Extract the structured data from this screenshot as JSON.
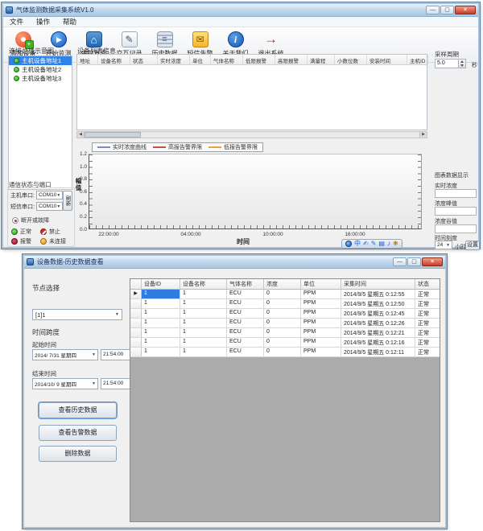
{
  "main_window": {
    "title": "气体监测数据采集系统V1.0",
    "menu_items": [
      "文件",
      "操作",
      "帮助"
    ],
    "toolbar": [
      {
        "icon": "add-device-icon",
        "label": "添加设备"
      },
      {
        "icon": "start-monitor-icon",
        "label": "开始监测"
      },
      {
        "icon": "main-screen-icon",
        "label": "主控界面"
      },
      {
        "icon": "interaction-log-icon",
        "label": "交互记录"
      },
      {
        "icon": "history-data-icon",
        "label": "历史数据"
      },
      {
        "icon": "sms-alarm-icon",
        "label": "短信告警"
      },
      {
        "icon": "about-us-icon",
        "label": "关于我们"
      },
      {
        "icon": "exit-system-icon",
        "label": "退出系统"
      }
    ],
    "tree": {
      "title": "连接总线示意图",
      "items": [
        "主机设备地址1",
        "主机设备地址2",
        "主机设备地址3"
      ],
      "selected_index": 0
    },
    "device_list": {
      "title": "设备列表信息",
      "columns": [
        "地址",
        "设备名称",
        "状态",
        "实时浓度",
        "单位",
        "气体名称",
        "低限报警",
        "高限报警",
        "满量程",
        "小数位数",
        "安装时间",
        "主机ID"
      ]
    },
    "sampling": {
      "label": "采样周期",
      "value": "5.0",
      "unit": "秒"
    },
    "comm": {
      "title": "通信状态与端口",
      "ports": [
        {
          "label": "主机串口:",
          "value": "COM10"
        },
        {
          "label": "短信串口:",
          "value": "COM10"
        }
      ],
      "refresh_label": "刷新",
      "fault_label": "断开或故障",
      "statuses": [
        {
          "icon": "status-normal-icon",
          "label": "正常"
        },
        {
          "icon": "status-disabled-icon",
          "label": "禁止"
        },
        {
          "icon": "status-alarm-icon",
          "label": "报警"
        },
        {
          "icon": "status-notconnected-icon",
          "label": "未连接"
        }
      ]
    },
    "data_display": {
      "title": "图表数据显示",
      "fields": [
        {
          "label": "实时浓度",
          "value": ""
        },
        {
          "label": "浓度峰值",
          "value": ""
        },
        {
          "label": "浓度谷值",
          "value": ""
        }
      ],
      "time_scale": {
        "label": "时间刻度",
        "value": "24",
        "unit": "小时",
        "button": "设置"
      }
    },
    "ime_icons": [
      "ime-language-icon",
      "ime-chinese-mode-icon",
      "ime-handwriting-icon",
      "ime-pen-icon",
      "ime-keyboard-icon",
      "ime-mic-icon",
      "ime-settings-icon"
    ]
  },
  "chart_data": {
    "type": "line",
    "title": "",
    "xlabel": "时间",
    "ylabel": "幅值",
    "x_ticks": [
      "22:00:00",
      "04:00:00",
      "10:00:00",
      "16:00:00"
    ],
    "y_ticks": [
      "1.2",
      "1.0",
      "0.8",
      "0.6",
      "0.4",
      "0.2",
      "0.0"
    ],
    "ylim": [
      0.0,
      1.2
    ],
    "grid": false,
    "legend_position": "top-left",
    "series": [
      {
        "name": "实时浓度曲线",
        "color": "#8282cf",
        "values": []
      },
      {
        "name": "高报告警界限",
        "color": "#c7503e",
        "values": []
      },
      {
        "name": "低报告警界限",
        "color": "#f0a230",
        "values": []
      }
    ]
  },
  "history_window": {
    "title": "设备数据-历史数据查看",
    "node_label": "节点选择",
    "node_value": "[1]1",
    "span_label": "时间跨度",
    "start_label": "起始时间",
    "start_date": "2014/ 7/31 星期四",
    "start_time": "21:54:00",
    "end_label": "结束时间",
    "end_date": "2014/10/ 9 星期四",
    "end_time": "21:54:00",
    "buttons": [
      "查看历史数据",
      "查看告警数据",
      "删除数据"
    ],
    "grid": {
      "columns": [
        "设备ID",
        "设备名称",
        "气体名称",
        "浓度",
        "单位",
        "采集时间",
        "状态"
      ],
      "rows": [
        [
          "1",
          "1",
          "ECU",
          "0",
          "PPM",
          "2014/9/5 星期五 0:12:55",
          "正常"
        ],
        [
          "1",
          "1",
          "ECU",
          "0",
          "PPM",
          "2014/9/5 星期五 0:12:50",
          "正常"
        ],
        [
          "1",
          "1",
          "ECU",
          "0",
          "PPM",
          "2014/9/5 星期五 0:12:45",
          "正常"
        ],
        [
          "1",
          "1",
          "ECU",
          "0",
          "PPM",
          "2014/9/5 星期五 0:12:26",
          "正常"
        ],
        [
          "1",
          "1",
          "ECU",
          "0",
          "PPM",
          "2014/9/5 星期五 0:12:21",
          "正常"
        ],
        [
          "1",
          "1",
          "ECU",
          "0",
          "PPM",
          "2014/9/5 星期五 0:12:16",
          "正常"
        ],
        [
          "1",
          "1",
          "ECU",
          "0",
          "PPM",
          "2014/9/5 星期五 0:12:11",
          "正常"
        ]
      ]
    }
  }
}
